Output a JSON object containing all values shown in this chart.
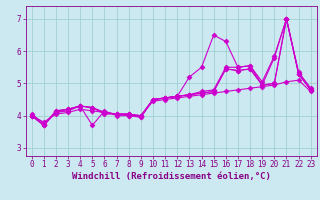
{
  "xlabel": "Windchill (Refroidissement éolien,°C)",
  "bg_color": "#cce8f0",
  "line_color": "#cc00cc",
  "grid_color": "#99cccc",
  "xlim": [
    -0.5,
    23.5
  ],
  "ylim": [
    2.75,
    7.4
  ],
  "xticks": [
    0,
    1,
    2,
    3,
    4,
    5,
    6,
    7,
    8,
    9,
    10,
    11,
    12,
    13,
    14,
    15,
    16,
    17,
    18,
    19,
    20,
    21,
    22,
    23
  ],
  "yticks": [
    3,
    4,
    5,
    6,
    7
  ],
  "series": [
    [
      4.0,
      3.7,
      4.15,
      4.2,
      4.3,
      4.25,
      4.05,
      4.05,
      4.05,
      3.95,
      4.5,
      4.55,
      4.6,
      4.65,
      4.7,
      4.75,
      5.45,
      5.4,
      5.45,
      4.95,
      5.0,
      7.0,
      5.3,
      4.8
    ],
    [
      4.0,
      3.7,
      4.15,
      4.2,
      4.3,
      3.7,
      4.15,
      4.0,
      4.0,
      3.95,
      4.5,
      4.55,
      4.6,
      4.65,
      4.7,
      4.75,
      5.45,
      5.4,
      5.45,
      4.95,
      5.0,
      7.0,
      5.3,
      4.8
    ],
    [
      4.0,
      3.7,
      4.1,
      4.2,
      4.3,
      4.25,
      4.1,
      4.05,
      4.0,
      4.0,
      4.5,
      4.55,
      4.6,
      5.2,
      5.5,
      6.5,
      6.3,
      5.5,
      5.55,
      4.95,
      5.8,
      7.0,
      5.3,
      4.8
    ],
    [
      4.05,
      3.75,
      4.1,
      4.15,
      4.3,
      4.25,
      4.1,
      4.05,
      4.05,
      4.0,
      4.5,
      4.55,
      4.6,
      4.65,
      4.75,
      4.8,
      5.5,
      5.5,
      5.55,
      5.05,
      5.85,
      7.0,
      5.35,
      4.85
    ],
    [
      4.0,
      3.8,
      4.05,
      4.1,
      4.2,
      4.15,
      4.1,
      4.05,
      4.05,
      4.0,
      4.45,
      4.5,
      4.55,
      4.6,
      4.65,
      4.7,
      4.75,
      4.8,
      4.85,
      4.9,
      4.95,
      5.05,
      5.1,
      4.75
    ]
  ],
  "marker": "D",
  "markersize": 2.5,
  "linewidth": 0.8,
  "tick_fontsize": 5.5,
  "xlabel_fontsize": 6.5
}
